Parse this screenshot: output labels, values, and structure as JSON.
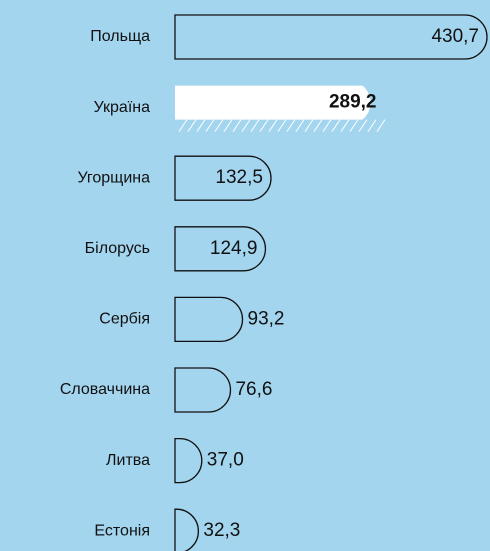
{
  "chart_data": {
    "type": "bar",
    "orientation": "horizontal",
    "categories": [
      "Польща",
      "Україна",
      "Угорщина",
      "Білорусь",
      "Сербія",
      "Словаччина",
      "Литва",
      "Естонія"
    ],
    "values": [
      430.7,
      289.2,
      132.5,
      124.9,
      93.2,
      76.6,
      37.0,
      32.3
    ],
    "value_labels": [
      "430,7",
      "289,2",
      "132,5",
      "124,9",
      "93,2",
      "76,6",
      "37,0",
      "32,3"
    ],
    "highlight": "Україна",
    "color": "#a3d5ef"
  }
}
